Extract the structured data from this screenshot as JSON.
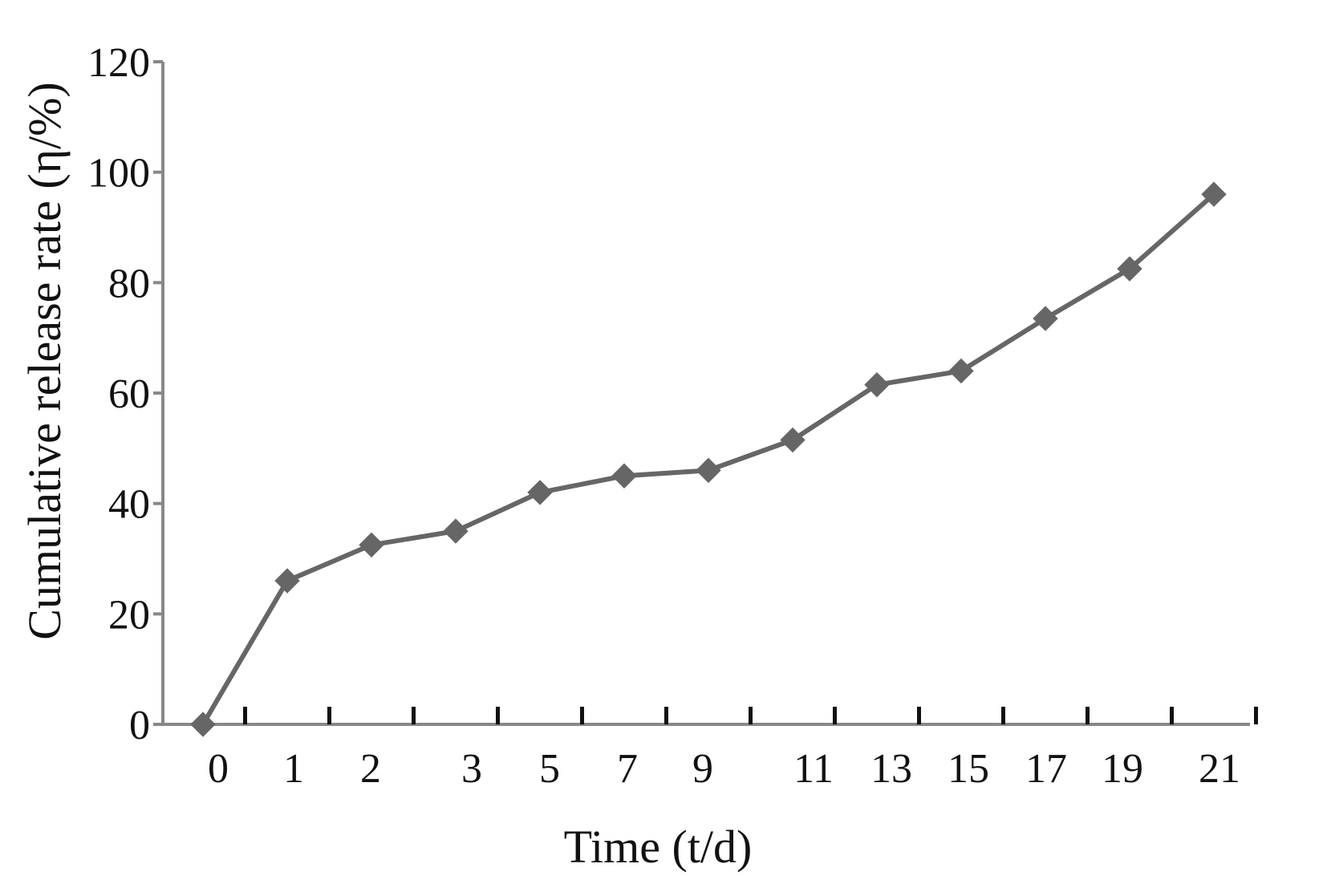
{
  "chart_data": {
    "type": "line",
    "title": "",
    "xlabel": "Time (t/d)",
    "ylabel": "Cumulative release rate (η/%)",
    "categories": [
      "0",
      "1",
      "2",
      "3",
      "5",
      "7",
      "9",
      "11",
      "13",
      "15",
      "17",
      "19",
      "21"
    ],
    "y_ticks": [
      0,
      20,
      40,
      60,
      80,
      100,
      120
    ],
    "ylim": [
      0,
      120
    ],
    "grid": false,
    "legend": "none",
    "series": [
      {
        "values": [
          0,
          26,
          32.5,
          35,
          42,
          45,
          46,
          51.5,
          61.5,
          64,
          73.5,
          82.5,
          96
        ],
        "color": "#666666",
        "marker": "diamond"
      }
    ]
  }
}
